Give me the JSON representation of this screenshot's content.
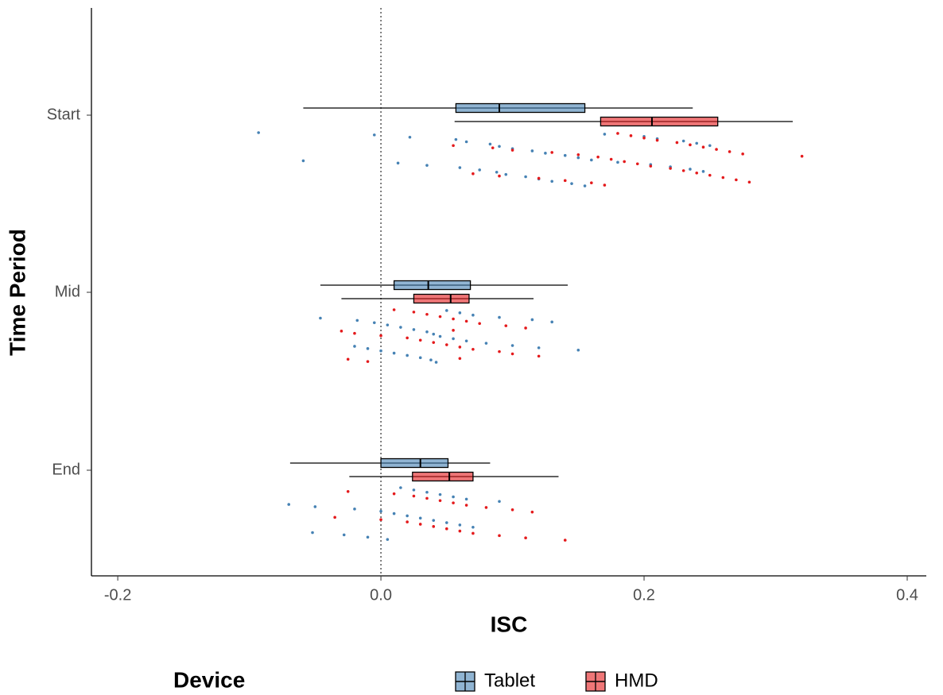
{
  "chart_data": {
    "type": "raincloud",
    "x_label": "ISC",
    "y_label": "Time Period",
    "legend_title": "Device",
    "legend_position": "bottom",
    "categories": [
      "Start",
      "Mid",
      "End"
    ],
    "xlim": [
      -0.22,
      0.4145
    ],
    "xticks": [
      -0.2,
      {
        "value": 0,
        "label": "0.0"
      },
      0.2,
      0.4
    ],
    "vline": 0,
    "series": [
      {
        "name": "Tablet",
        "color": "#4682b4",
        "boxes": [
          {
            "min": -0.059,
            "q1": 0.057,
            "median": 0.09,
            "q3": 0.155,
            "max": 0.237
          },
          {
            "min": -0.046,
            "q1": 0.01,
            "median": 0.036,
            "q3": 0.068,
            "max": 0.142
          },
          {
            "min": -0.069,
            "q1": 0.0,
            "median": 0.03,
            "q3": 0.051,
            "max": 0.083
          }
        ],
        "points": [
          [
            -0.093,
            -0.059,
            -0.005,
            0.013,
            0.022,
            0.035,
            0.057,
            0.06,
            0.065,
            0.075,
            0.083,
            0.088,
            0.09,
            0.095,
            0.1,
            0.11,
            0.115,
            0.12,
            0.125,
            0.13,
            0.14,
            0.145,
            0.15,
            0.155,
            0.16,
            0.17,
            0.18,
            0.2,
            0.205,
            0.21,
            0.22,
            0.23,
            0.235,
            0.24,
            0.245,
            0.25
          ],
          [
            -0.046,
            -0.02,
            -0.018,
            -0.01,
            -0.005,
            0,
            0.005,
            0.01,
            0.015,
            0.02,
            0.025,
            0.03,
            0.035,
            0.038,
            0.04,
            0.042,
            0.045,
            0.05,
            0.055,
            0.06,
            0.065,
            0.07,
            0.08,
            0.09,
            0.1,
            0.115,
            0.12,
            0.13,
            0.15
          ],
          [
            -0.07,
            -0.052,
            -0.05,
            -0.028,
            -0.02,
            -0.01,
            0,
            0.005,
            0.01,
            0.015,
            0.02,
            0.025,
            0.03,
            0.035,
            0.04,
            0.045,
            0.05,
            0.055,
            0.06,
            0.065,
            0.07,
            0.09
          ]
        ]
      },
      {
        "name": "HMD",
        "color": "#e41a1c",
        "boxes": [
          {
            "min": 0.056,
            "q1": 0.167,
            "median": 0.206,
            "q3": 0.256,
            "max": 0.313
          },
          {
            "min": -0.03,
            "q1": 0.025,
            "median": 0.053,
            "q3": 0.067,
            "max": 0.116
          },
          {
            "min": -0.024,
            "q1": 0.024,
            "median": 0.052,
            "q3": 0.07,
            "max": 0.135
          }
        ],
        "points": [
          [
            0.055,
            0.07,
            0.085,
            0.09,
            0.1,
            0.12,
            0.13,
            0.14,
            0.15,
            0.16,
            0.165,
            0.17,
            0.175,
            0.18,
            0.185,
            0.19,
            0.195,
            0.2,
            0.205,
            0.21,
            0.22,
            0.225,
            0.23,
            0.235,
            0.24,
            0.245,
            0.25,
            0.255,
            0.26,
            0.265,
            0.27,
            0.275,
            0.28,
            0.32
          ],
          [
            -0.03,
            -0.025,
            -0.02,
            -0.01,
            0,
            0.01,
            0.02,
            0.025,
            0.03,
            0.035,
            0.04,
            0.045,
            0.05,
            0.055,
            0.06,
            0.065,
            0.07,
            0.075,
            0.09,
            0.095,
            0.1,
            0.11,
            0.12,
            0.055,
            0.06
          ],
          [
            -0.035,
            -0.025,
            0,
            0.01,
            0.02,
            0.025,
            0.03,
            0.035,
            0.04,
            0.045,
            0.05,
            0.055,
            0.06,
            0.065,
            0.07,
            0.08,
            0.09,
            0.1,
            0.11,
            0.115,
            0.14
          ]
        ]
      }
    ]
  }
}
